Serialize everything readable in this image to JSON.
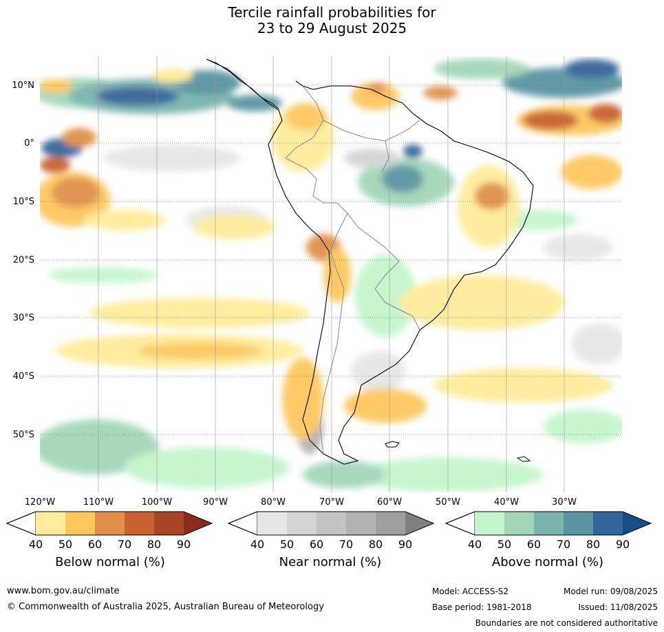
{
  "title": {
    "line1": "Tercile rainfall probabilities for",
    "line2": "23 to 29 August 2025"
  },
  "map": {
    "lat_labels": [
      "10°N",
      "0°",
      "10°S",
      "20°S",
      "30°S",
      "40°S",
      "50°S"
    ],
    "lon_labels": [
      "120°W",
      "110°W",
      "100°W",
      "90°W",
      "80°W",
      "70°W",
      "60°W",
      "50°W",
      "40°W",
      "30°W"
    ],
    "land_outline_color": "#000000",
    "border_color": "#888888",
    "gridline_color": "#555555"
  },
  "legend": {
    "below": {
      "caption": "Below normal (%)",
      "ticks": [
        "40",
        "50",
        "60",
        "70",
        "80",
        "90"
      ],
      "colors": [
        "#ffeb99",
        "#fdc75e",
        "#e0904a",
        "#c8602f",
        "#a84527",
        "#8c2b1c"
      ]
    },
    "near": {
      "caption": "Near normal (%)",
      "ticks": [
        "40",
        "50",
        "60",
        "70",
        "80",
        "90"
      ],
      "colors": [
        "#e6e6e6",
        "#d4d4d4",
        "#c4c4c4",
        "#b2b2b2",
        "#a0a0a0",
        "#808080"
      ]
    },
    "above": {
      "caption": "Above normal (%)",
      "ticks": [
        "40",
        "50",
        "60",
        "70",
        "80",
        "90"
      ],
      "colors": [
        "#c4f5cc",
        "#a3d6b9",
        "#7ab4ad",
        "#5a94a2",
        "#346598",
        "#154d85"
      ]
    }
  },
  "footer": {
    "website": "www.bom.gov.au/climate",
    "copyright": "© Commonwealth of Australia 2025, Australian Bureau of Meteorology",
    "model": "Model: ACCESS-S2",
    "model_run": "Model run: 09/08/2025",
    "base_period": "Base period: 1981-2018",
    "issued": "Issued: 11/08/2025",
    "disclaimer": "Boundaries are not considered authoritative"
  }
}
